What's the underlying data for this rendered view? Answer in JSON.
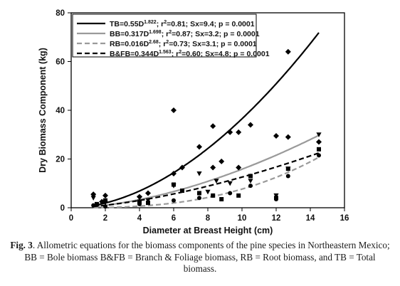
{
  "chart_data": {
    "type": "scatter",
    "xlabel": "Diameter at Breast Height (cm)",
    "ylabel": "Dry Biomass Component (kg)",
    "xlim": [
      0,
      16
    ],
    "ylim": [
      0,
      80
    ],
    "xticks": [
      0,
      2,
      4,
      6,
      8,
      10,
      12,
      14,
      16
    ],
    "yticks": [
      0,
      20,
      40,
      60,
      80
    ],
    "grid": false,
    "legend_position": "top-left",
    "series": [
      {
        "name": "TB",
        "marker": "diamond",
        "line_style": "solid",
        "line_color": "#000000",
        "fit": {
          "a": 0.55,
          "b": 1.822
        },
        "legend_parts": [
          {
            "t": "TB=0.55D"
          },
          {
            "t": "1.822",
            "sup": true
          },
          {
            "t": "; r"
          },
          {
            "t": "2",
            "sup": true
          },
          {
            "t": "=0.81; Sx=9.4; p = 0.0001"
          }
        ],
        "points": [
          [
            1.3,
            5.5
          ],
          [
            1.8,
            2.5
          ],
          [
            2.0,
            5.0
          ],
          [
            4.0,
            4.5
          ],
          [
            4.5,
            6.0
          ],
          [
            6.0,
            14.0
          ],
          [
            6.0,
            40.0
          ],
          [
            6.5,
            16.5
          ],
          [
            7.5,
            25.0
          ],
          [
            8.3,
            33.5
          ],
          [
            8.3,
            16.5
          ],
          [
            8.8,
            19.0
          ],
          [
            9.3,
            31.0
          ],
          [
            9.8,
            31.0
          ],
          [
            9.8,
            16.5
          ],
          [
            10.5,
            34.0
          ],
          [
            12.0,
            29.5
          ],
          [
            12.7,
            64.0
          ],
          [
            12.7,
            29.0
          ],
          [
            14.5,
            27.0
          ]
        ]
      },
      {
        "name": "BB",
        "marker": "triangle-down",
        "line_style": "solid",
        "line_color": "#9a9a9a",
        "fit": {
          "a": 0.317,
          "b": 1.698
        },
        "legend_parts": [
          {
            "t": "BB=0.317D"
          },
          {
            "t": "1.698",
            "sup": true
          },
          {
            "t": "; r"
          },
          {
            "t": "2",
            "sup": true
          },
          {
            "t": "=0.87; Sx=3.2; p = 0.0001"
          }
        ],
        "points": [
          [
            1.3,
            4.0
          ],
          [
            2.0,
            2.0
          ],
          [
            4.0,
            4.0
          ],
          [
            4.5,
            3.0
          ],
          [
            6.0,
            9.0
          ],
          [
            7.5,
            14.0
          ],
          [
            8.0,
            6.5
          ],
          [
            8.5,
            11.0
          ],
          [
            9.3,
            10.0
          ],
          [
            10.5,
            11.0
          ],
          [
            12.0,
            5.0
          ],
          [
            12.7,
            16.0
          ],
          [
            14.5,
            30.0
          ]
        ]
      },
      {
        "name": "RB",
        "marker": "circle",
        "line_style": "dashed",
        "line_color": "#9a9a9a",
        "fit": {
          "a": 0.016,
          "b": 2.68
        },
        "legend_parts": [
          {
            "t": "RB=0.016D"
          },
          {
            "t": "2.68",
            "sup": true
          },
          {
            "t": "; r"
          },
          {
            "t": "2",
            "sup": true
          },
          {
            "t": "=0.73; Sx=3.1; p = 0.0001"
          }
        ],
        "points": [
          [
            1.3,
            1.0
          ],
          [
            2.0,
            0.5
          ],
          [
            4.0,
            1.5
          ],
          [
            4.5,
            2.0
          ],
          [
            6.0,
            3.0
          ],
          [
            7.5,
            4.0
          ],
          [
            8.3,
            5.0
          ],
          [
            9.3,
            6.0
          ],
          [
            10.5,
            9.0
          ],
          [
            12.0,
            3.5
          ],
          [
            12.7,
            13.0
          ],
          [
            14.5,
            21.5
          ]
        ]
      },
      {
        "name": "B&FB",
        "marker": "square",
        "line_style": "dashed",
        "line_color": "#000000",
        "fit": {
          "a": 0.344,
          "b": 1.563
        },
        "legend_parts": [
          {
            "t": "B&FB=0.344D"
          },
          {
            "t": "1.563",
            "sup": true
          },
          {
            "t": "; r"
          },
          {
            "t": "2",
            "sup": true
          },
          {
            "t": "=0.60; Sx=4.8; p = 0.0001"
          }
        ],
        "points": [
          [
            1.5,
            1.5
          ],
          [
            2.0,
            3.0
          ],
          [
            4.0,
            2.5
          ],
          [
            4.5,
            2.0
          ],
          [
            6.0,
            9.5
          ],
          [
            6.5,
            7.0
          ],
          [
            7.5,
            6.0
          ],
          [
            8.3,
            5.0
          ],
          [
            8.8,
            3.5
          ],
          [
            9.8,
            5.0
          ],
          [
            10.5,
            13.0
          ],
          [
            12.0,
            4.0
          ],
          [
            12.7,
            16.0
          ],
          [
            14.5,
            24.0
          ]
        ]
      }
    ]
  },
  "caption": {
    "lead": "Fig. 3",
    "text": ". Allometric equations for the biomass components of the pine species in Northeastern Mexico; BB = Bole biomass B&FB = Branch & Foliage biomass, RB = Root biomass, and TB = Total biomass."
  }
}
